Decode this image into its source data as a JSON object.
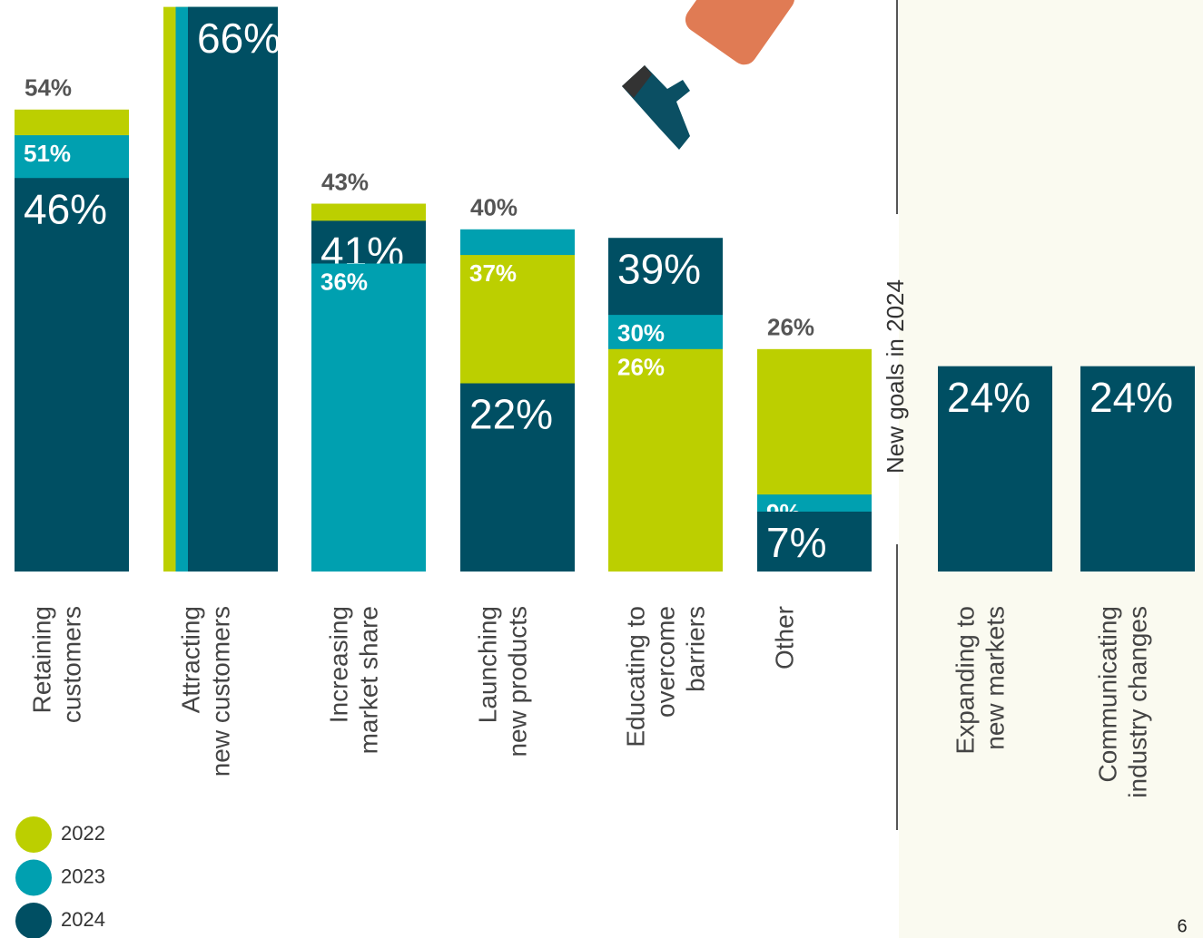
{
  "chart_data": {
    "type": "overlap-bar",
    "categories": [
      [
        "Retaining",
        "customers"
      ],
      [
        "Attracting",
        "new customers"
      ],
      [
        "Increasing",
        "market share"
      ],
      [
        "Launching",
        "new products"
      ],
      [
        "Educating to",
        "overcome",
        "barriers"
      ],
      [
        "Other"
      ],
      [
        "Expanding to",
        "new markets"
      ],
      [
        "Communicating",
        "industry changes"
      ]
    ],
    "series": [
      {
        "name": "2022",
        "color": "#bccf00",
        "values": [
          54,
          66,
          43,
          37,
          26,
          26,
          null,
          null
        ],
        "value_labels": [
          "54%",
          null,
          "43%",
          "37%",
          "26%",
          "26%",
          null,
          null
        ]
      },
      {
        "name": "2023",
        "color": "#00a0b0",
        "values": [
          51,
          66,
          36,
          40,
          30,
          9,
          null,
          null
        ],
        "value_labels": [
          "51%",
          null,
          "36%",
          "40%",
          "30%",
          "9%",
          null,
          null
        ]
      },
      {
        "name": "2024",
        "color": "#004f63",
        "values": [
          46,
          66,
          41,
          22,
          39,
          7,
          24,
          24
        ],
        "value_labels": [
          "46%",
          "66%",
          "41%",
          "22%",
          "39%",
          "7%",
          "24%",
          "24%"
        ]
      }
    ],
    "section_label": "New goals in 2024",
    "page_number": "6"
  }
}
